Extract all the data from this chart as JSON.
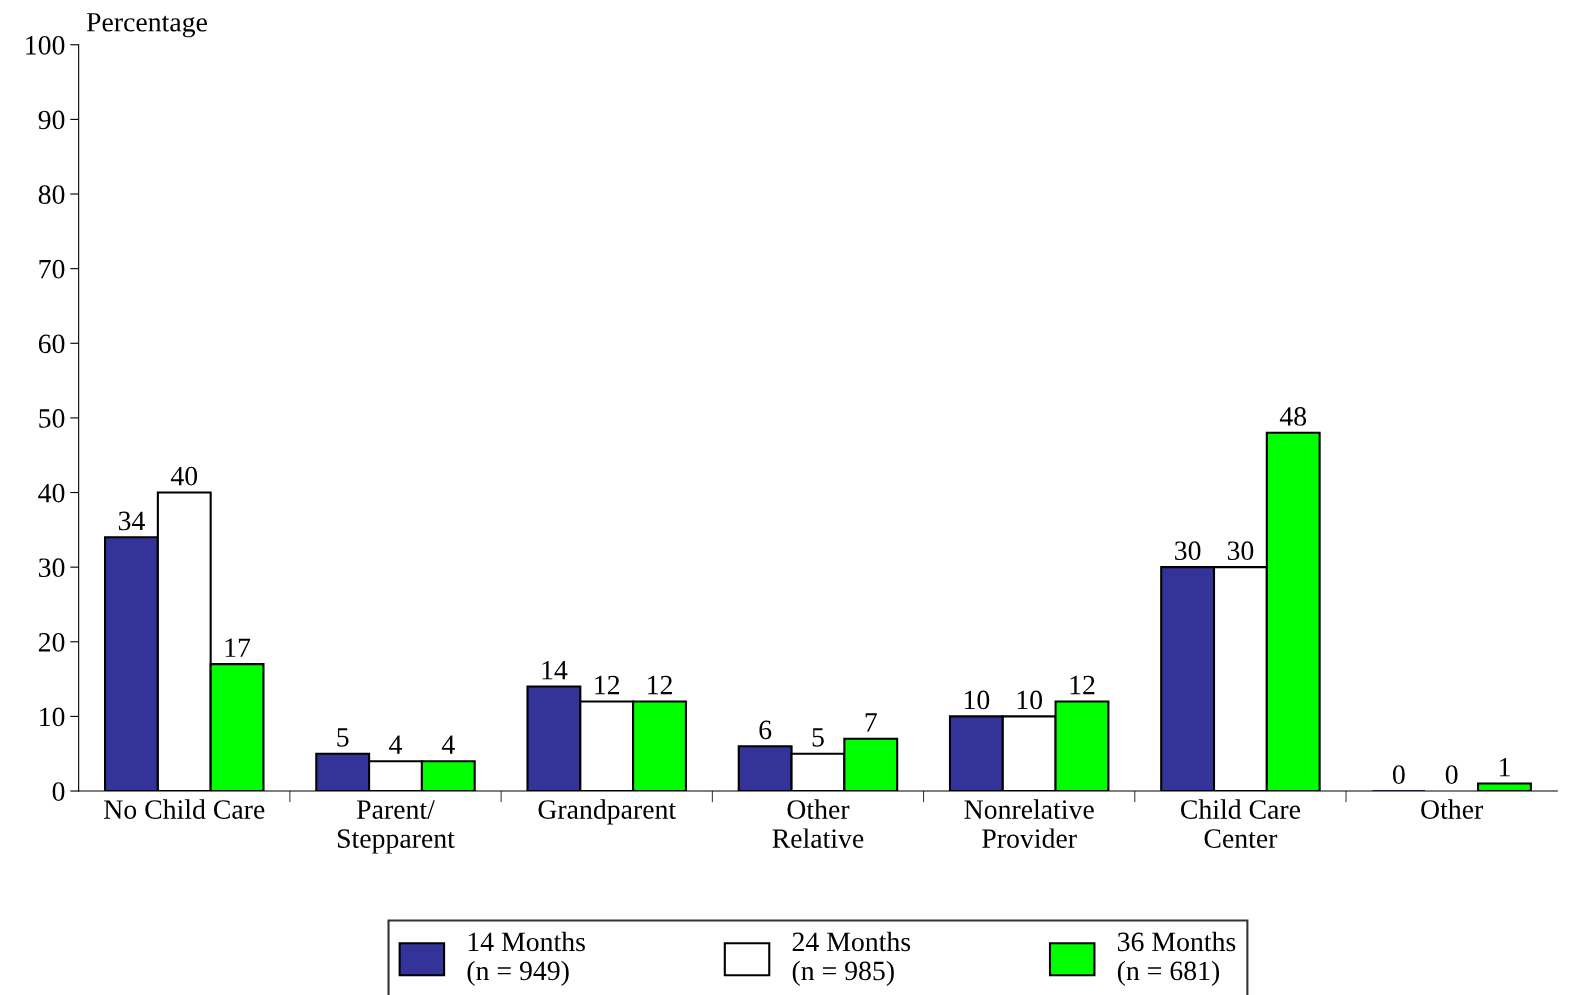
{
  "chart_data": {
    "type": "bar",
    "ylabel": "Percentage",
    "categories": [
      "No Child Care",
      "Parent/\nStepparent",
      "Grandparent",
      "Other\nRelative",
      "Nonrelative\nProvider",
      "Child Care\nCenter",
      "Other"
    ],
    "series": [
      {
        "name": "14 Months\n(n = 949)",
        "color": "#333399",
        "values": [
          34,
          5,
          14,
          6,
          10,
          30,
          0
        ]
      },
      {
        "name": "24 Months\n(n = 985)",
        "color": "#ffffff",
        "values": [
          40,
          4,
          12,
          5,
          10,
          30,
          0
        ]
      },
      {
        "name": "36 Months\n(n = 681)",
        "color": "#00ff00",
        "values": [
          17,
          4,
          12,
          7,
          12,
          48,
          1
        ]
      }
    ],
    "ylim": [
      0,
      100
    ],
    "yticks": [
      0,
      10,
      20,
      30,
      40,
      50,
      60,
      70,
      80,
      90,
      100
    ],
    "data_labels": true,
    "grid": false,
    "legend": "bottom"
  }
}
